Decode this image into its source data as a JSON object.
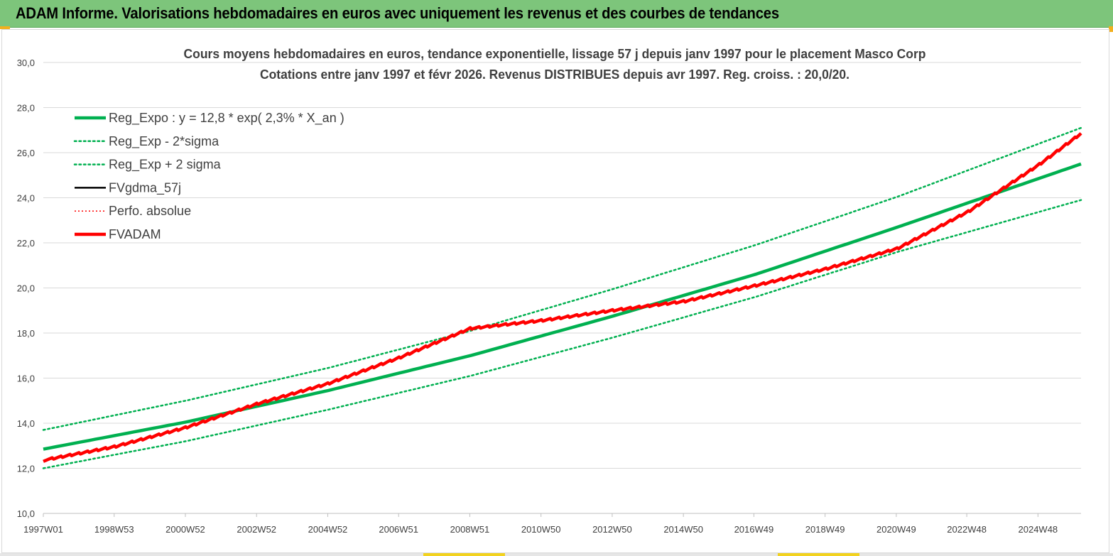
{
  "header": {
    "title": "ADAM Informe. Valorisations hebdomadaires en euros avec uniquement les revenus et des courbes de tendances"
  },
  "colors": {
    "header_bg": "#7dc57b",
    "green": "#00b050",
    "red": "#ff0000",
    "black": "#000000",
    "grid": "#d9d9d9"
  },
  "chart_data": {
    "type": "line",
    "title_line1": "Cours moyens hebdomadaires en euros, tendance exponentielle, lissage 57 j depuis janv 1997 pour le placement Masco Corp",
    "title_line2": "Cotations entre janv 1997 et févr 2026. Revenus DISTRIBUES depuis avr 1997. Reg. croiss. : 20,0/20.",
    "x_start": 1997.0,
    "x_end": 2026.15,
    "x_tick_years": [
      1997.0,
      1998.99,
      2000.99,
      2002.99,
      2004.99,
      2006.98,
      2008.98,
      2010.98,
      2012.98,
      2014.98,
      2016.96,
      2018.96,
      2020.96,
      2022.94,
      2024.94
    ],
    "x_tick_labels": [
      "1997W01",
      "1998W53",
      "2000W52",
      "2002W52",
      "2004W52",
      "2006W51",
      "2008W51",
      "2010W50",
      "2012W50",
      "2014W50",
      "2016W49",
      "2018W49",
      "2020W49",
      "2022W48",
      "2024W48"
    ],
    "ylim": [
      10,
      30
    ],
    "y_tick_values": [
      10,
      12,
      14,
      16,
      18,
      20,
      22,
      24,
      26,
      28,
      30
    ],
    "y_tick_labels": [
      "10,0",
      "12,0",
      "14,0",
      "16,0",
      "18,0",
      "20,0",
      "22,0",
      "24,0",
      "26,0",
      "28,0",
      "30,0"
    ],
    "grid": true,
    "legend_position": "top-left",
    "series": [
      {
        "name": "Reg_Expo : y = 12,8 * exp( 2,3% *  X_an )",
        "style": "solid-thick",
        "color": "#00b050",
        "x": [
          1997.0,
          2001.0,
          2005.0,
          2009.0,
          2013.0,
          2017.0,
          2021.0,
          2026.15
        ],
        "y": [
          12.85,
          14.05,
          15.45,
          17.0,
          18.75,
          20.6,
          22.7,
          25.5
        ]
      },
      {
        "name": "Reg_Exp - 2*sigma",
        "style": "dotted",
        "color": "#00b050",
        "x": [
          1997.0,
          2001.0,
          2005.0,
          2009.0,
          2013.0,
          2017.0,
          2021.0,
          2026.15
        ],
        "y": [
          12.0,
          13.2,
          14.6,
          16.1,
          17.8,
          19.6,
          21.6,
          23.9
        ]
      },
      {
        "name": "Reg_Exp + 2 sigma",
        "style": "dotted",
        "color": "#00b050",
        "x": [
          1997.0,
          2001.0,
          2005.0,
          2009.0,
          2013.0,
          2017.0,
          2021.0,
          2026.15
        ],
        "y": [
          13.7,
          15.0,
          16.45,
          18.1,
          19.95,
          21.9,
          24.05,
          27.1
        ]
      },
      {
        "name": "FVgdma_57j",
        "style": "solid",
        "color": "#000000",
        "x": [],
        "y": []
      },
      {
        "name": "Perfo. absolue",
        "style": "dotted-thin",
        "color": "#ff0000",
        "x": [],
        "y": []
      },
      {
        "name": "FVADAM",
        "style": "solid-thick",
        "color": "#ff0000",
        "x": [
          1997.0,
          1999.0,
          2001.0,
          2003.0,
          2005.0,
          2007.0,
          2009.0,
          2011.0,
          2013.0,
          2015.0,
          2017.0,
          2019.0,
          2021.0,
          2023.0,
          2025.0,
          2026.15
        ],
        "y": [
          12.35,
          12.95,
          13.8,
          14.85,
          15.75,
          16.9,
          18.2,
          18.55,
          19.0,
          19.4,
          20.1,
          20.85,
          21.75,
          23.4,
          25.5,
          26.85
        ]
      }
    ]
  }
}
